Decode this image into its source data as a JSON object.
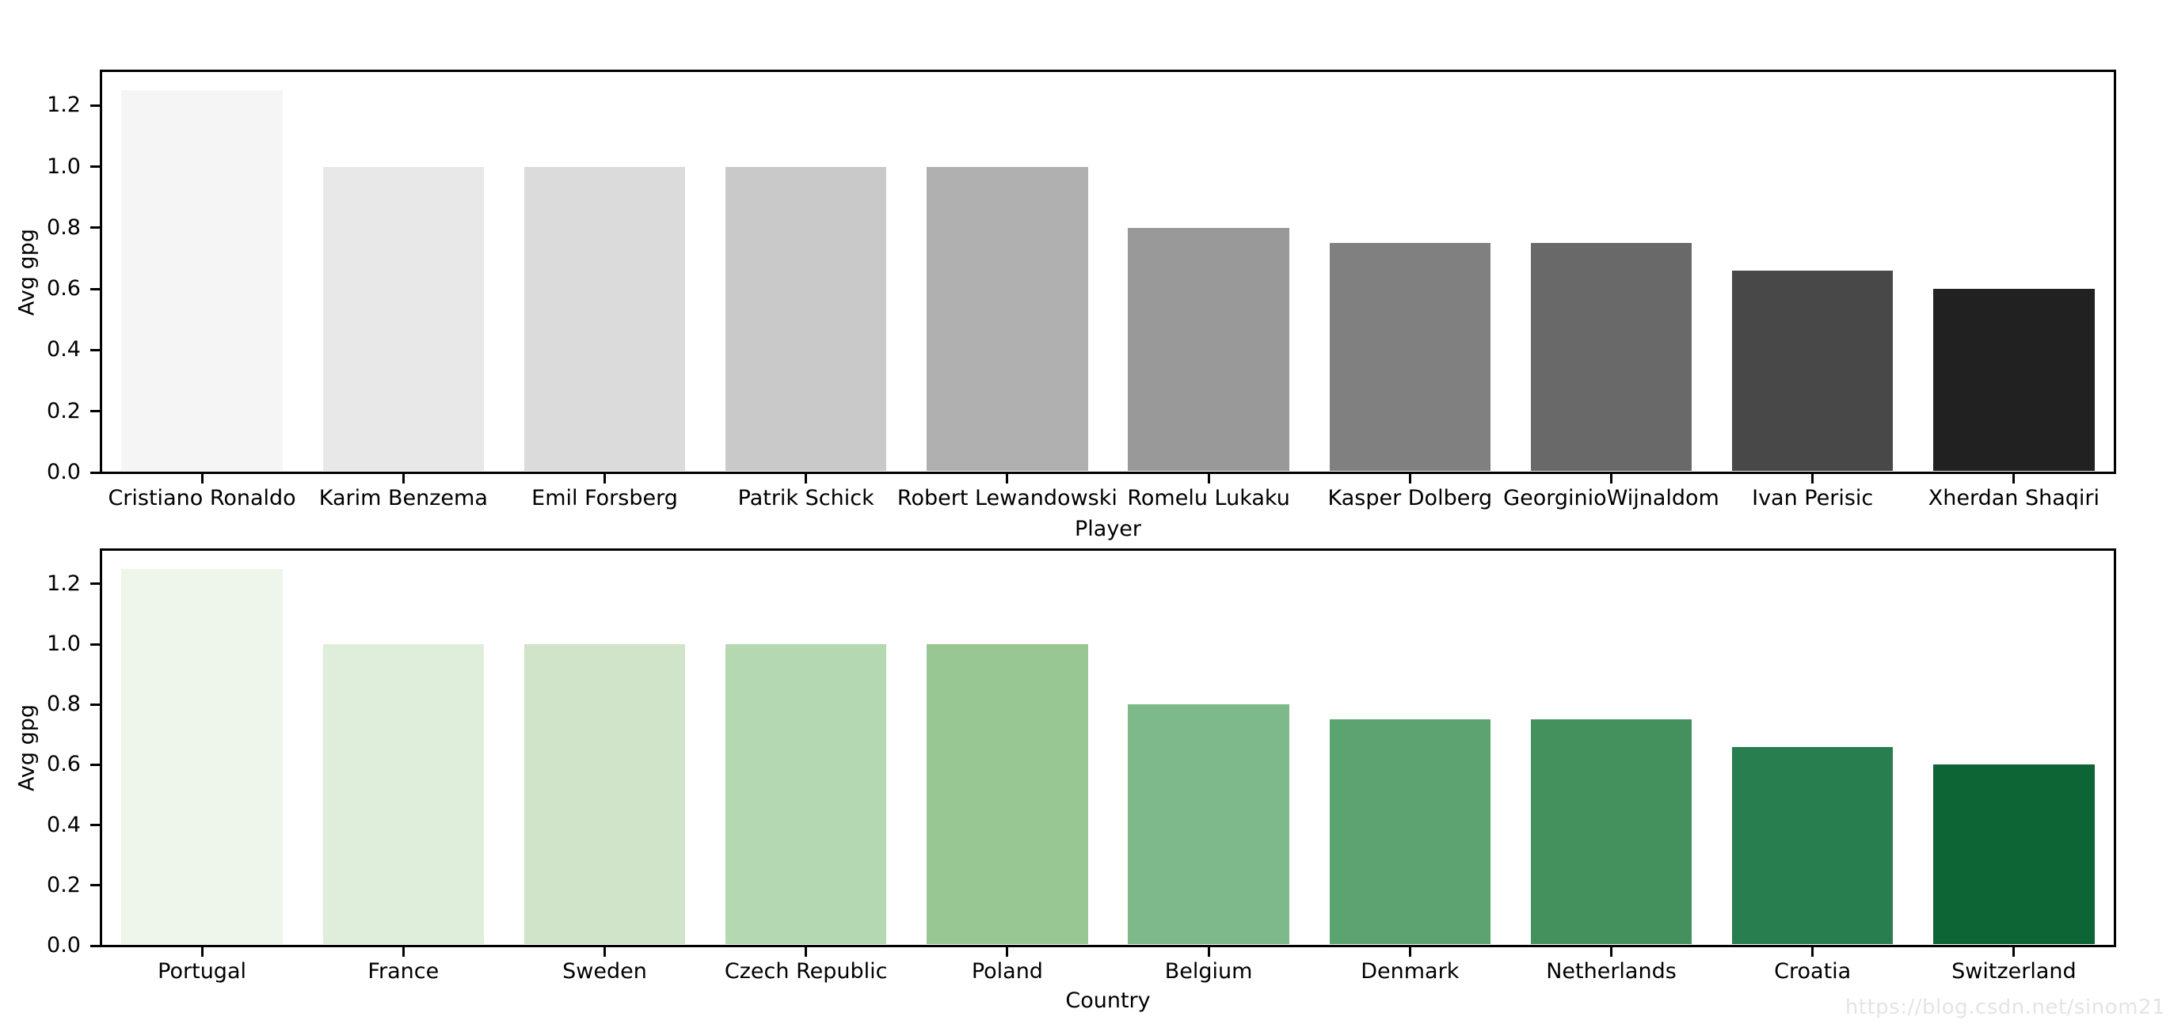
{
  "watermark": "https://blog.csdn.net/sinom21",
  "chart_data": [
    {
      "type": "bar",
      "title": "",
      "xlabel": "Player",
      "ylabel": "Avg gpg",
      "palette": "Greys",
      "grid": false,
      "legend": null,
      "categories": [
        "Cristiano Ronaldo",
        "Karim Benzema",
        "Emil Forsberg",
        "Patrik Schick",
        "Robert Lewandowski",
        "Romelu Lukaku",
        "Kasper Dolberg",
        "GeorginioWijnaldom",
        "Ivan Perisic",
        "Xherdan Shaqiri"
      ],
      "values": [
        1.25,
        1.0,
        1.0,
        1.0,
        1.0,
        0.8,
        0.75,
        0.75,
        0.66,
        0.6
      ],
      "bar_colors": [
        "#f5f5f5",
        "#e8e8e8",
        "#dbdbdb",
        "#c9c9c9",
        "#b0b0b0",
        "#999999",
        "#808080",
        "#696969",
        "#484848",
        "#212121"
      ],
      "yticks": [
        0.0,
        0.2,
        0.4,
        0.6,
        0.8,
        1.0,
        1.2
      ],
      "ylim": [
        0,
        1.3125
      ]
    },
    {
      "type": "bar",
      "title": "",
      "xlabel": "Country",
      "ylabel": "Avg gpg",
      "palette": "Greens",
      "grid": false,
      "legend": null,
      "categories": [
        "Portugal",
        "France",
        "Sweden",
        "Czech Republic",
        "Poland",
        "Belgium",
        "Denmark",
        "Netherlands",
        "Croatia",
        "Switzerland"
      ],
      "values": [
        1.25,
        1.0,
        1.0,
        1.0,
        1.0,
        0.8,
        0.75,
        0.75,
        0.66,
        0.6
      ],
      "bar_colors": [
        "#eef5ea",
        "#dfeeda",
        "#cfe4c8",
        "#b4d8af",
        "#98c794",
        "#7db989",
        "#5ba470",
        "#44915e",
        "#297e50",
        "#0d6434"
      ],
      "yticks": [
        0.0,
        0.2,
        0.4,
        0.6,
        0.8,
        1.0,
        1.2
      ],
      "ylim": [
        0,
        1.3125
      ]
    }
  ]
}
